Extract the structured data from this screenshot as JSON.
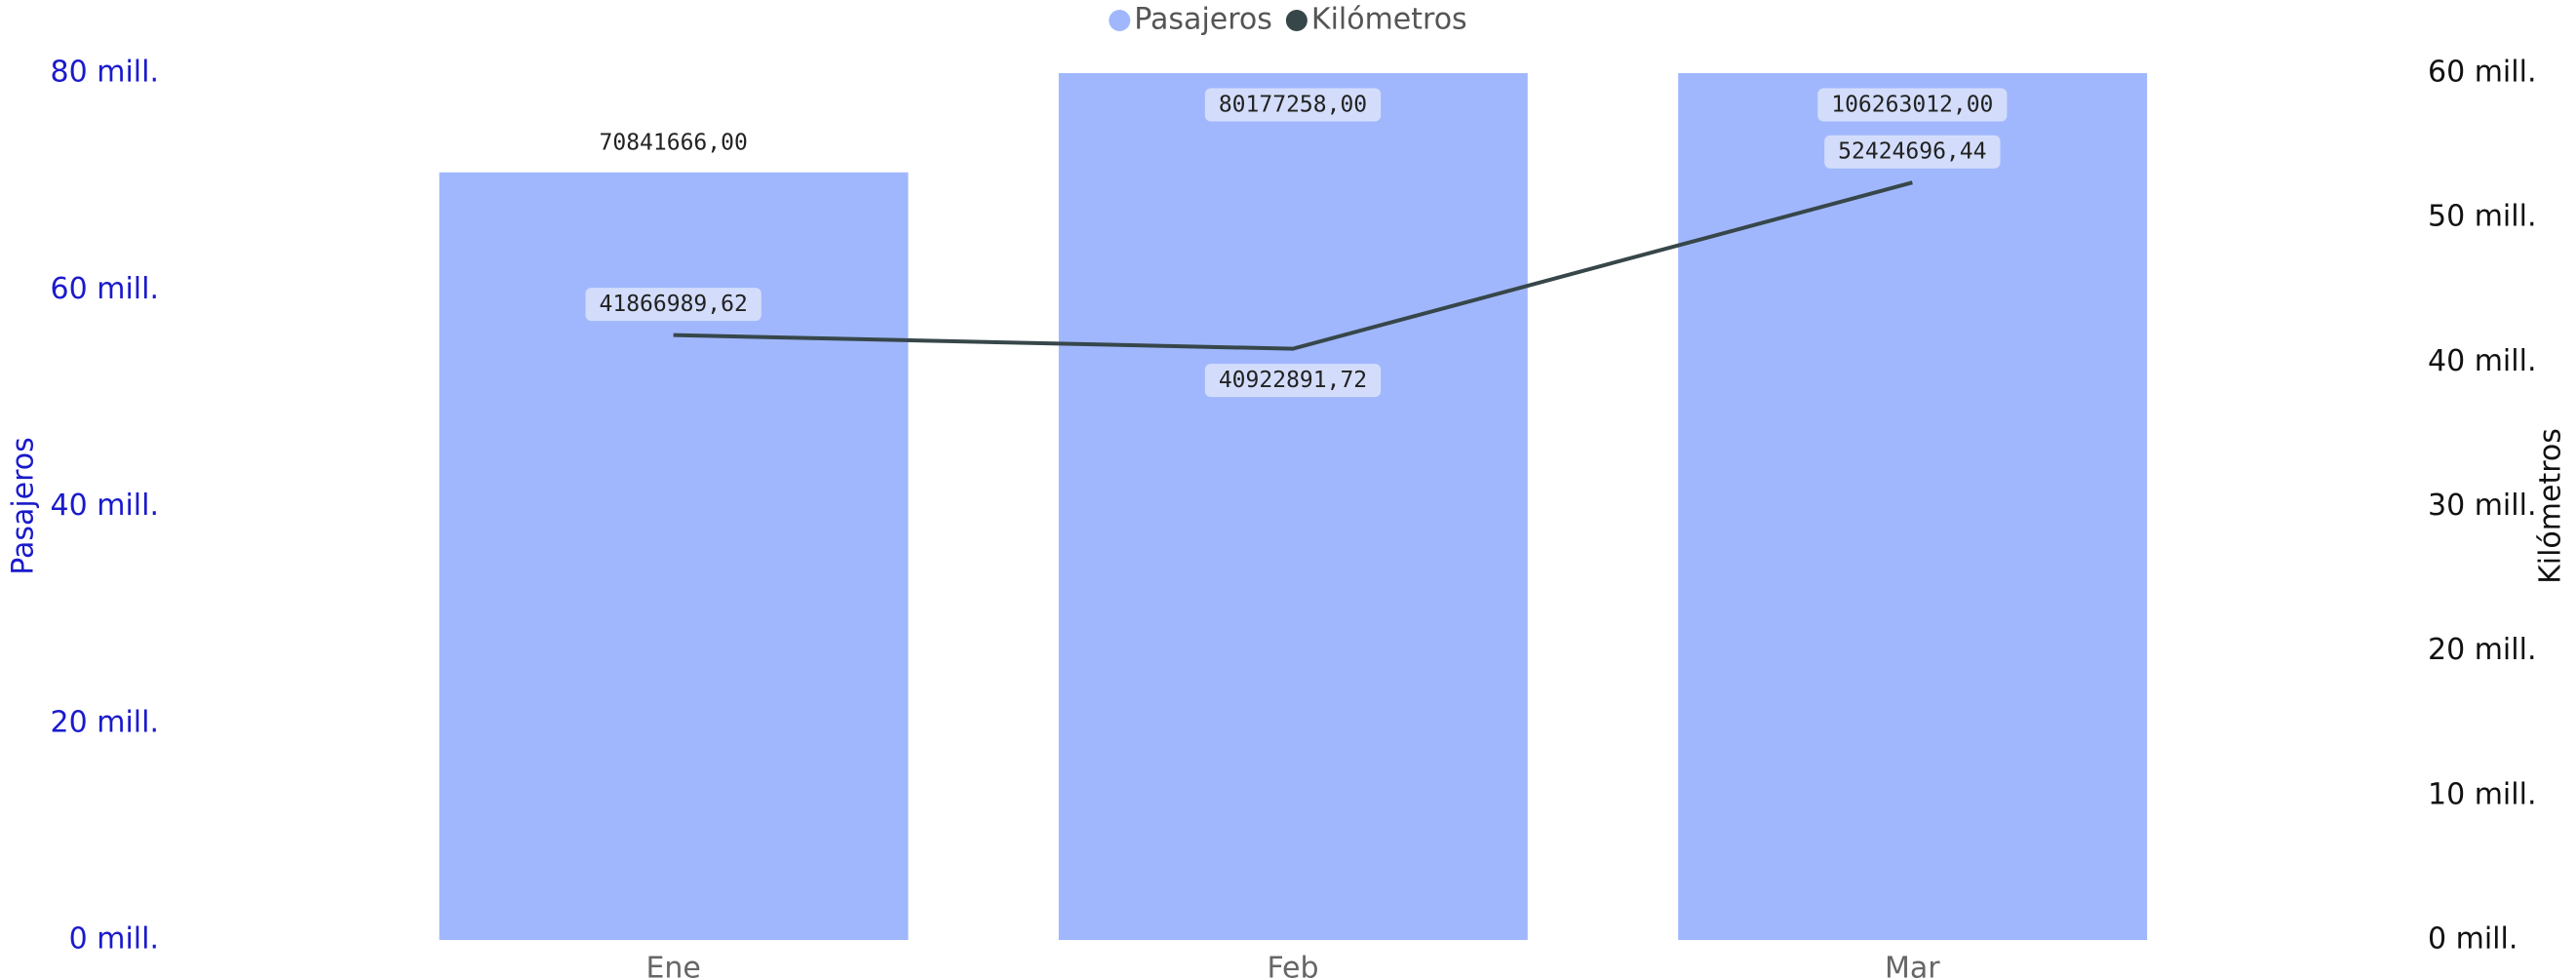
{
  "chart_data": {
    "type": "combo",
    "categories": [
      "Ene",
      "Feb",
      "Mar"
    ],
    "series": [
      {
        "name": "Pasajeros",
        "type": "bar",
        "axis": "y",
        "color": "#a0b7fd",
        "values": [
          70841666,
          80177258,
          106263012
        ],
        "value_labels": [
          "70841666,00",
          "80177258,00",
          "106263012,00"
        ]
      },
      {
        "name": "Kilómetros",
        "type": "line",
        "axis": "y2",
        "color": "#374649",
        "values": [
          41866989.62,
          40922891.72,
          52424696.44
        ],
        "value_labels": [
          "41866989,62",
          "40922891,72",
          "52424696,44"
        ]
      }
    ],
    "ylabel": "Pasajeros",
    "y2label": "Kilómetros",
    "ylim": [
      0,
      80000000
    ],
    "yticks": [
      {
        "value": 0,
        "label": "0 mill."
      },
      {
        "value": 20000000,
        "label": "20 mill."
      },
      {
        "value": 40000000,
        "label": "40 mill."
      },
      {
        "value": 60000000,
        "label": "60 mill."
      },
      {
        "value": 80000000,
        "label": "80 mill."
      }
    ],
    "y2lim": [
      0,
      60000000
    ],
    "y2ticks": [
      {
        "value": 0,
        "label": "0 mill."
      },
      {
        "value": 10000000,
        "label": "10 mill."
      },
      {
        "value": 20000000,
        "label": "20 mill."
      },
      {
        "value": 30000000,
        "label": "30 mill."
      },
      {
        "value": 40000000,
        "label": "40 mill."
      },
      {
        "value": 50000000,
        "label": "50 mill."
      },
      {
        "value": 60000000,
        "label": "60 mill."
      }
    ],
    "legend": "top",
    "grid": false
  }
}
